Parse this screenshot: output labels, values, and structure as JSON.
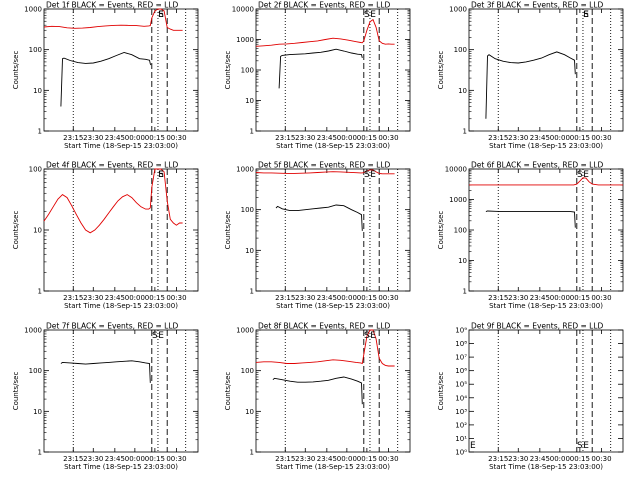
{
  "colors": {
    "events": "#000000",
    "lld": "#e00000",
    "axis": "#000000"
  },
  "time_ticks": [
    "23:15",
    "23:30",
    "23:45",
    "00:00",
    "00:15",
    "00:30"
  ],
  "xlabel": "Start Time (18-Sep-15 23:03:00)",
  "ylabel": "Counts/sec",
  "chart_data": [
    {
      "type": "line",
      "title": "Det 1f BLACK = Events, RED = LLD",
      "xlabel": "Start Time (18-Sep-15 23:03:00)",
      "ylabel": "Counts/sec",
      "xlim": [
        0,
        100
      ],
      "ylim": [
        1,
        1000
      ],
      "yticks": [
        1,
        10,
        100,
        1000
      ],
      "yticklabels": [
        "1",
        "10",
        "100",
        "1000"
      ],
      "vlines_dotted": [
        19,
        74,
        92
      ],
      "vlines_dashed": [
        70,
        80
      ],
      "saa_marker": {
        "label": "S",
        "x": 76
      },
      "extra_label": {
        "text": "E",
        "x": 76
      },
      "series": [
        {
          "name": "Events",
          "color": "#000000",
          "x": [
            11,
            12,
            13,
            17,
            22,
            27,
            32,
            37,
            42,
            47,
            52,
            57,
            62,
            66,
            68.5,
            69,
            69.5
          ],
          "y": [
            4,
            60,
            62,
            54,
            48,
            46,
            47,
            52,
            60,
            72,
            85,
            75,
            60,
            58,
            55,
            45,
            42
          ]
        },
        {
          "name": "LLD",
          "color": "#e00000",
          "x": [
            0,
            5,
            10,
            15,
            20,
            25,
            30,
            35,
            40,
            45,
            50,
            55,
            60,
            65,
            68,
            69,
            70,
            72,
            74,
            76,
            78,
            80,
            82,
            84,
            86,
            88,
            90
          ],
          "y": [
            360,
            375,
            370,
            345,
            335,
            340,
            350,
            370,
            385,
            395,
            400,
            395,
            390,
            375,
            385,
            390,
            600,
            900,
            1000,
            1000,
            900,
            350,
            320,
            300,
            300,
            300,
            300
          ]
        }
      ]
    },
    {
      "type": "line",
      "title": "Det 2f BLACK = Events, RED = LLD",
      "xlabel": "Start Time (18-Sep-15 23:03:00)",
      "ylabel": "Counts/sec",
      "xlim": [
        0,
        100
      ],
      "ylim": [
        1,
        10000
      ],
      "yticks": [
        1,
        10,
        100,
        1000,
        10000
      ],
      "yticklabels": [
        "1",
        "10",
        "100",
        "1000",
        "10000"
      ],
      "vlines_dotted": [
        19,
        74,
        92
      ],
      "vlines_dashed": [
        70,
        80
      ],
      "saa_marker": {
        "label": "S",
        "x": 72
      },
      "extra_label": {
        "text": "E",
        "x": 76
      },
      "series": [
        {
          "name": "Events",
          "color": "#000000",
          "x": [
            15,
            16,
            17,
            22,
            27,
            32,
            37,
            42,
            47,
            52,
            57,
            62,
            66,
            68.5,
            69
          ],
          "y": [
            25,
            280,
            300,
            320,
            330,
            340,
            360,
            380,
            420,
            480,
            420,
            360,
            330,
            320,
            250
          ]
        },
        {
          "name": "LLD",
          "color": "#e00000",
          "x": [
            0,
            5,
            10,
            15,
            20,
            25,
            30,
            35,
            40,
            45,
            50,
            55,
            60,
            65,
            68,
            69,
            70,
            72,
            74,
            76,
            78,
            80,
            82,
            84,
            86,
            88,
            90
          ],
          "y": [
            600,
            620,
            650,
            700,
            720,
            750,
            800,
            850,
            900,
            1000,
            1100,
            1050,
            950,
            850,
            800,
            780,
            900,
            2000,
            3800,
            4500,
            2500,
            900,
            750,
            700,
            720,
            700,
            700
          ]
        }
      ]
    },
    {
      "type": "line",
      "title": "Det 3f BLACK = Events, RED = LLD",
      "xlabel": "Start Time (18-Sep-15 23:03:00)",
      "ylabel": "Counts/sec",
      "xlim": [
        0,
        100
      ],
      "ylim": [
        1,
        1000
      ],
      "yticks": [
        1,
        10,
        100,
        1000
      ],
      "yticklabels": [
        "1",
        "10",
        "100",
        "1000"
      ],
      "vlines_dotted": [
        19,
        74,
        92
      ],
      "vlines_dashed": [
        70,
        80
      ],
      "saa_marker": {
        "label": "S",
        "x": 76
      },
      "extra_label": {
        "text": "E",
        "x": 76
      },
      "series": [
        {
          "name": "Events",
          "color": "#000000",
          "x": [
            11,
            12,
            13,
            17,
            22,
            27,
            32,
            37,
            42,
            47,
            52,
            57,
            62,
            66,
            68.5,
            69
          ],
          "y": [
            2,
            70,
            75,
            60,
            52,
            48,
            47,
            50,
            55,
            62,
            75,
            88,
            75,
            62,
            55,
            25
          ]
        }
      ]
    },
    {
      "type": "line",
      "title": "Det 4f BLACK = Events, RED = LLD",
      "xlabel": "Start Time (18-Sep-15 23:03:00)",
      "ylabel": "Counts/sec",
      "xlim": [
        0,
        100
      ],
      "ylim": [
        1,
        100
      ],
      "yticks": [
        1,
        10,
        100
      ],
      "yticklabels": [
        "1",
        "10",
        "100"
      ],
      "vlines_dotted": [
        19,
        74,
        92
      ],
      "vlines_dashed": [
        70,
        80
      ],
      "saa_marker": {
        "label": "S",
        "x": 76
      },
      "extra_label": {
        "text": "E",
        "x": 76
      },
      "series": [
        {
          "name": "LLD",
          "color": "#e00000",
          "x": [
            0,
            3,
            6,
            9,
            12,
            15,
            18,
            21,
            24,
            27,
            30,
            33,
            36,
            39,
            42,
            45,
            48,
            51,
            54,
            57,
            60,
            63,
            66,
            68,
            69,
            70,
            72,
            74,
            76,
            78,
            80,
            82,
            84,
            86,
            88,
            90
          ],
          "y": [
            14,
            18,
            24,
            32,
            38,
            34,
            25,
            18,
            13,
            10,
            9,
            10,
            12,
            15,
            19,
            24,
            30,
            35,
            38,
            34,
            28,
            24,
            22,
            22,
            23,
            50,
            100,
            100,
            100,
            90,
            30,
            15,
            13,
            12,
            13,
            13
          ]
        }
      ]
    },
    {
      "type": "line",
      "title": "Det 5f BLACK = Events, RED = LLD",
      "xlabel": "Start Time (18-Sep-15 23:03:00)",
      "ylabel": "Counts/sec",
      "xlim": [
        0,
        100
      ],
      "ylim": [
        1,
        1000
      ],
      "yticks": [
        1,
        10,
        100,
        1000
      ],
      "yticklabels": [
        "1",
        "10",
        "100",
        "1000"
      ],
      "vlines_dotted": [
        19,
        74,
        92
      ],
      "vlines_dashed": [
        70,
        80
      ],
      "saa_marker": {
        "label": "S",
        "x": 72
      },
      "extra_label": {
        "text": "E",
        "x": 76
      },
      "series": [
        {
          "name": "Events",
          "color": "#000000",
          "x": [
            13,
            14,
            17,
            22,
            27,
            32,
            37,
            42,
            47,
            52,
            57,
            62,
            66,
            68.5,
            69
          ],
          "y": [
            110,
            120,
            105,
            95,
            95,
            100,
            105,
            110,
            115,
            130,
            125,
            100,
            85,
            75,
            30
          ]
        },
        {
          "name": "LLD",
          "color": "#e00000",
          "x": [
            0,
            5,
            10,
            15,
            20,
            25,
            30,
            35,
            40,
            45,
            50,
            55,
            60,
            65,
            68,
            69,
            70,
            72,
            74,
            76,
            78,
            80,
            82,
            84,
            86,
            88,
            90
          ],
          "y": [
            820,
            800,
            800,
            790,
            780,
            780,
            790,
            800,
            820,
            840,
            860,
            850,
            830,
            810,
            800,
            800,
            820,
            900,
            950,
            950,
            850,
            780,
            760,
            760,
            760,
            760,
            760
          ]
        }
      ]
    },
    {
      "type": "line",
      "title": "Det 6f BLACK = Events, RED = LLD",
      "xlabel": "Start Time (18-Sep-15 23:03:00)",
      "ylabel": "Counts/sec",
      "xlim": [
        0,
        100
      ],
      "ylim": [
        1,
        10000
      ],
      "yticks": [
        1,
        10,
        100,
        1000,
        10000
      ],
      "yticklabels": [
        "1",
        "10",
        "100",
        "1000",
        "10000"
      ],
      "vlines_dotted": [
        19,
        74,
        92
      ],
      "vlines_dashed": [
        70,
        80
      ],
      "saa_marker": {
        "label": "S",
        "x": 72
      },
      "extra_label": {
        "text": "E",
        "x": 76
      },
      "series": [
        {
          "name": "Events",
          "color": "#000000",
          "x": [
            11,
            12,
            17,
            22,
            27,
            32,
            37,
            42,
            47,
            52,
            57,
            62,
            66,
            68.5,
            69
          ],
          "y": [
            400,
            420,
            410,
            400,
            400,
            400,
            400,
            400,
            400,
            400,
            400,
            400,
            400,
            390,
            120
          ]
        },
        {
          "name": "LLD",
          "color": "#e00000",
          "x": [
            0,
            10,
            20,
            30,
            40,
            50,
            60,
            66,
            68,
            70,
            72,
            74,
            76,
            78,
            80,
            84,
            88,
            92,
            96,
            100
          ],
          "y": [
            3000,
            3000,
            3000,
            3000,
            3000,
            3000,
            3000,
            3000,
            3000,
            3200,
            4000,
            5200,
            5000,
            3800,
            3200,
            3000,
            3000,
            3000,
            3000,
            3000
          ]
        }
      ]
    },
    {
      "type": "line",
      "title": "Det 7f BLACK = Events, RED = LLD",
      "xlabel": "Start Time (18-Sep-15 23:03:00)",
      "ylabel": "Counts/sec",
      "xlim": [
        0,
        100
      ],
      "ylim": [
        1,
        1000
      ],
      "yticks": [
        1,
        10,
        100,
        1000
      ],
      "yticklabels": [
        "1",
        "10",
        "100",
        "1000"
      ],
      "vlines_dotted": [
        19,
        74,
        92
      ],
      "vlines_dashed": [
        70,
        80
      ],
      "saa_marker": {
        "label": "S",
        "x": 72
      },
      "extra_label": {
        "text": "E",
        "x": 76
      },
      "series": [
        {
          "name": "Events",
          "color": "#000000",
          "x": [
            11,
            12,
            17,
            22,
            27,
            32,
            37,
            42,
            47,
            52,
            57,
            62,
            66,
            68.5,
            69
          ],
          "y": [
            150,
            160,
            155,
            150,
            145,
            150,
            155,
            160,
            165,
            170,
            175,
            165,
            155,
            150,
            50
          ]
        }
      ]
    },
    {
      "type": "line",
      "title": "Det 8f BLACK = Events, RED = LLD",
      "xlabel": "Start Time (18-Sep-15 23:03:00)",
      "ylabel": "Counts/sec",
      "xlim": [
        0,
        100
      ],
      "ylim": [
        1,
        1000
      ],
      "yticks": [
        1,
        10,
        100,
        1000
      ],
      "yticklabels": [
        "1",
        "10",
        "100",
        "1000"
      ],
      "vlines_dotted": [
        19,
        74,
        92
      ],
      "vlines_dashed": [
        70,
        80
      ],
      "saa_marker": {
        "label": "S",
        "x": 72
      },
      "extra_label": {
        "text": "E",
        "x": 76
      },
      "series": [
        {
          "name": "Events",
          "color": "#000000",
          "x": [
            11,
            12,
            17,
            22,
            27,
            32,
            37,
            42,
            47,
            52,
            57,
            62,
            66,
            68.5,
            69
          ],
          "y": [
            60,
            65,
            60,
            55,
            52,
            52,
            53,
            55,
            58,
            65,
            70,
            62,
            55,
            50,
            15
          ]
        },
        {
          "name": "LLD",
          "color": "#e00000",
          "x": [
            0,
            5,
            10,
            15,
            20,
            25,
            30,
            35,
            40,
            45,
            50,
            55,
            60,
            65,
            68,
            69,
            70,
            72,
            74,
            76,
            78,
            80,
            82,
            84,
            86,
            88,
            90
          ],
          "y": [
            160,
            165,
            165,
            160,
            150,
            150,
            155,
            160,
            165,
            175,
            185,
            180,
            170,
            160,
            155,
            150,
            250,
            700,
            1000,
            1000,
            600,
            200,
            150,
            135,
            130,
            130,
            130
          ]
        }
      ]
    },
    {
      "type": "line",
      "title": "Det 9f BLACK = Events, RED = LLD",
      "xlabel": "Start Time (18-Sep-15 23:03:00)",
      "ylabel": "Counts/sec",
      "xlim": [
        0,
        100
      ],
      "ylim": [
        1,
        1000000000
      ],
      "yticks": [
        1,
        10,
        100,
        1000,
        10000,
        100000,
        1000000,
        10000000,
        100000000,
        1000000000
      ],
      "yticklabels": [
        "10⁰",
        "10¹",
        "10²",
        "10³",
        "10⁴",
        "10⁵",
        "10⁶",
        "10⁷",
        "10⁸",
        "10⁹"
      ],
      "vlines_dotted": [
        19,
        74,
        92
      ],
      "vlines_dashed": [
        70,
        80
      ],
      "saa_marker": {
        "label": "S",
        "x": 72
      },
      "extra_label": {
        "text": "E",
        "x": 76
      },
      "left_edge_label": "E",
      "series": []
    }
  ]
}
